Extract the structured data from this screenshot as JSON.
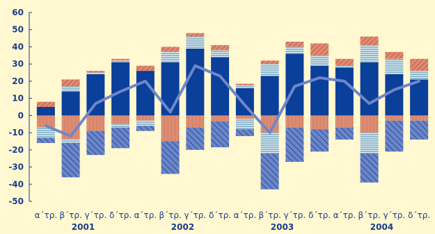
{
  "chart_data": {
    "type": "bar",
    "subtype": "stacked bar with line overlay",
    "colors": {
      "background": "#FFF8D0",
      "axis": "#1a3d8f",
      "solid_blue": "#0a3f9a",
      "hatched_blue": "#6b86c8",
      "hatched_blue_stroke": "#2b4a9a",
      "light_blue_striped": "#8fb8cc",
      "light_blue_stripe": "#e6f0f2",
      "salmon_striped": "#e7a58e",
      "salmon_stripe": "#c9684d",
      "salmon_hatched": "#e08a72",
      "salmon_hatched_stroke": "#b5503a",
      "line": "#6f86c9"
    },
    "ylim": [
      -50,
      60
    ],
    "yticks": [
      "60",
      "50",
      "40",
      "30",
      "20",
      "10",
      "0",
      "-10",
      "-20",
      "-30",
      "-40",
      "-50"
    ],
    "categories": [
      "α΄τρ.",
      "β΄τρ.",
      "γ΄τρ.",
      "δ΄τρ.",
      "α΄τρ.",
      "β΄τρ.",
      "γ΄τρ.",
      "δ΄τρ.",
      "α΄τρ.",
      "β΄τρ.",
      "γ΄τρ.",
      "δ΄τρ.",
      "α΄τρ.",
      "β΄τρ.",
      "γ΄τρ.",
      "δ΄τρ."
    ],
    "year_labels": [
      "2001",
      "2002",
      "2003",
      "2004"
    ],
    "series": [
      {
        "values": [
          5,
          14,
          24,
          31,
          26,
          31,
          39,
          34,
          16,
          23,
          36,
          29,
          28,
          31,
          24,
          21
        ]
      },
      {
        "values": [
          -7,
          -14,
          -9,
          -5,
          -3,
          -15,
          -7,
          -3.5,
          -2,
          -10,
          -7,
          -8,
          -7,
          -10,
          -3,
          -3
        ]
      },
      {
        "values": [
          0,
          3,
          1,
          1,
          0,
          6,
          7,
          4,
          1.5,
          7,
          4,
          6,
          1,
          10,
          9,
          5
        ]
      },
      {
        "values": [
          3,
          4,
          1,
          1,
          3,
          3,
          2,
          3,
          1,
          2,
          3,
          7,
          4,
          5,
          4,
          7
        ]
      },
      {
        "values": [
          -3,
          -20,
          -14,
          -12,
          -3,
          -19,
          -13,
          -15,
          -4,
          -21,
          -20,
          -13,
          -7,
          -17,
          -18,
          -11
        ]
      },
      {
        "values": [
          -6,
          -2,
          0,
          -2,
          -3,
          0,
          0,
          0,
          -6,
          -12,
          0,
          0,
          0,
          -12,
          0,
          0
        ]
      },
      {
        "values": [
          -6,
          -12,
          7,
          14,
          20,
          2,
          29,
          23,
          6,
          -10,
          17,
          22,
          20,
          7,
          15,
          20
        ]
      }
    ]
  }
}
